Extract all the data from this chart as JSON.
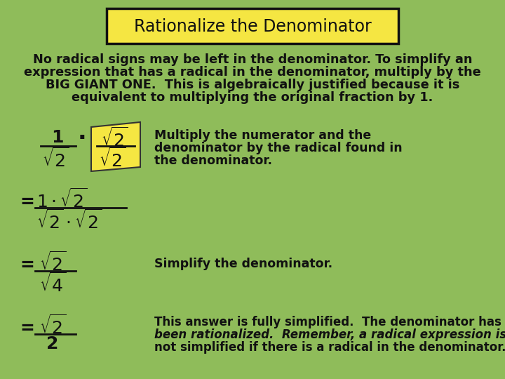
{
  "bg_color": "#8fbc5a",
  "title": "Rationalize the Denominator",
  "title_box_color": "#f5e642",
  "title_box_edge": "#111111",
  "font_color": "#111111",
  "para_line1": "No radical signs may be left in the denominator. To simplify an",
  "para_line2": "expression that has a radical in the denominator, multiply by the",
  "para_line3": "BIG GIANT ONE.  This is algebraically justified because it is",
  "para_line4": "equivalent to multiplying the original fraction by 1.",
  "step1_line1": "Multiply the numerator and the",
  "step1_line2": "denominator by the radical found in",
  "step1_line3": "the denominator.",
  "step2_note": "Simplify the denominator.",
  "step3_line1": "This answer is fully simplified.  The denominator has",
  "step3_line2": "been rationalized.  Remember, a radical expression is",
  "step3_line3": "not simplified if there is a radical in the denominator."
}
